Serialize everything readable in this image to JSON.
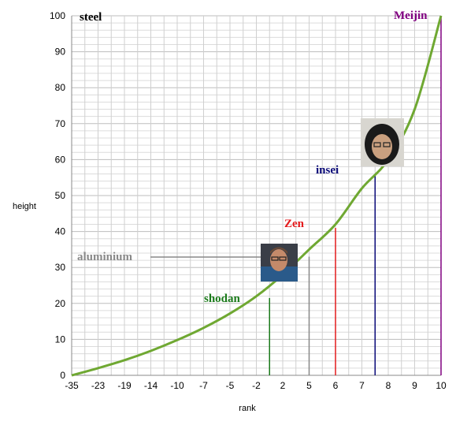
{
  "chart_data": {
    "type": "line",
    "xlabel": "rank",
    "ylabel": "height",
    "x_tick_labels": [
      "-35",
      "-23",
      "-19",
      "-14",
      "-10",
      "-7",
      "-5",
      "-2",
      "2",
      "5",
      "6",
      "7",
      "8",
      "9",
      "10"
    ],
    "y_ticks": [
      0,
      10,
      20,
      30,
      40,
      50,
      60,
      70,
      80,
      90,
      100
    ],
    "ylim": [
      0,
      100
    ],
    "grid": true,
    "series": [
      {
        "color": "#6fa832",
        "x_index": [
          0,
          1,
          2,
          3,
          4,
          5,
          6,
          7,
          8,
          9,
          10,
          11,
          12,
          13,
          14
        ],
        "values": [
          0,
          2,
          4.2,
          6.8,
          9.8,
          13.2,
          17.2,
          22,
          28,
          35,
          42,
          52,
          60,
          74,
          100
        ]
      }
    ],
    "markers": [
      {
        "label": "steel",
        "x_index": 0,
        "height": 100,
        "color": "#000000"
      },
      {
        "label": "aluminium",
        "x_index": 9,
        "height": 33,
        "color": "#888888"
      },
      {
        "label": "shodan",
        "x_index": 7.5,
        "height": 21.5,
        "color": "#1a7a1a"
      },
      {
        "label": "Zen",
        "x_index": 10,
        "height": 41,
        "color": "#e41a1c"
      },
      {
        "label": "insei",
        "x_index": 11.5,
        "height": 56,
        "color": "#0a0a78"
      },
      {
        "label": "Meijin",
        "x_index": 14,
        "height": 100,
        "color": "#800080"
      }
    ]
  }
}
